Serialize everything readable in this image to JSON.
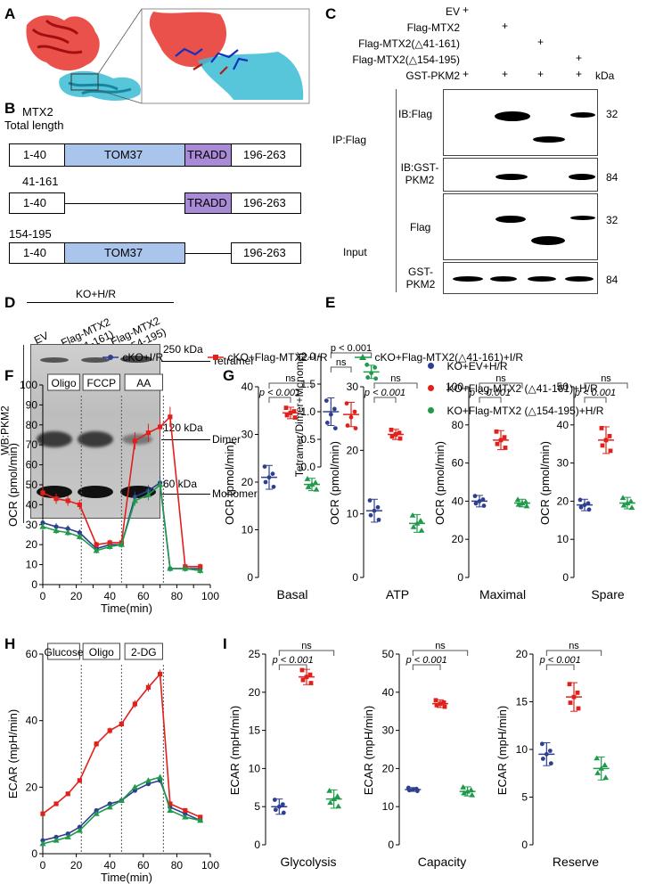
{
  "panels": {
    "A": "A",
    "B": "B",
    "C": "C",
    "D": "D",
    "E": "E",
    "F": "F",
    "G": "G",
    "H": "H",
    "I": "I"
  },
  "panel_b": {
    "title_line1": "MTX2",
    "title_line2": "Total length",
    "row2_label": "41-161",
    "row3_label": "154-195",
    "seg_1_40": "1-40",
    "seg_tom37": "TOM37",
    "seg_tradd": "TRADD",
    "seg_196_263": "196-263"
  },
  "panel_c": {
    "conditions": [
      "EV",
      "Flag-MTX2",
      "Flag-MTX2(△41-161)",
      "Flag-MTX2(△154-195)",
      "GST-PKM2"
    ],
    "plus": "+",
    "kda": "kDa",
    "ip_label": "IP:Flag",
    "input_label": "Input",
    "blots": [
      {
        "label": "IB:Flag",
        "mw": "32"
      },
      {
        "label": "IB:GST-PKM2",
        "mw": "84"
      },
      {
        "label": "Flag",
        "mw": "32"
      },
      {
        "label": "GST-PKM2",
        "mw": "84"
      }
    ]
  },
  "panel_d": {
    "header": "KO+H/R",
    "lanes": [
      "EV",
      "Flag-MTX2 (△41-161)",
      "Flag-MTX2 (△154-195)"
    ],
    "side_label": "WB:PKM2",
    "markers": [
      {
        "mw": "250 kDa",
        "name": "Tetramer"
      },
      {
        "mw": "120 kDa",
        "name": "Dimer"
      },
      {
        "mw": "60 kDa",
        "name": "Monomer"
      }
    ]
  },
  "panel_e": {
    "ylabel": "Tetramer/Dimer+Monomer",
    "p_label": "p < 0.001",
    "ns_label": "ns",
    "legend": [
      {
        "name": "KO+EV+H/R",
        "color": "#2e3f8f"
      },
      {
        "name": "KO+Flag-MTX2 (△41-161)+H/R",
        "color": "#e0201b"
      },
      {
        "name": "KO+Flag-MTX2 (△154-195)+H/R",
        "color": "#1e9a4a"
      }
    ]
  },
  "legend_fg": [
    {
      "name": "cKO+I/R",
      "color": "#2e3f8f"
    },
    {
      "name": "cKO+Flag-MTX2+I/R",
      "color": "#e0201b"
    },
    {
      "name": "cKO+Flag-MTX2(△41-161)+I/R",
      "color": "#1e9a4a"
    }
  ],
  "panel_f": {
    "ylabel": "OCR (pmol/min)",
    "xlabel": "Time(min)",
    "injections": [
      "Oligo",
      "FCCP",
      "AA"
    ]
  },
  "panel_g": {
    "ylabel": "OCR (pmol/min)",
    "p_label": "p < 0.001",
    "ns_label": "ns",
    "subplots": [
      "Basal",
      "ATP",
      "Maximal",
      "Spare"
    ]
  },
  "panel_h": {
    "ylabel": "ECAR (mpH/min)",
    "xlabel": "Time(min)",
    "injections": [
      "Glucose",
      "Oligo",
      "2-DG"
    ]
  },
  "panel_i": {
    "ylabel": "ECAR (mpH/min)",
    "p_label": "p < 0.001",
    "ns_label": "ns",
    "subplots": [
      "Glycolysis",
      "Capacity",
      "Reserve"
    ]
  },
  "chart_data": [
    {
      "id": "E",
      "type": "scatter",
      "ylabel": "Tetramer/Dimer+Monomer",
      "ylim": [
        0,
        2.0
      ],
      "yticks": [
        0.0,
        0.5,
        1.0,
        1.5,
        2.0
      ],
      "series": [
        {
          "name": "KO+EV+H/R",
          "mean": 1.0,
          "sd": 0.25,
          "points": [
            1.2,
            1.05,
            0.95,
            0.8,
            0.7
          ]
        },
        {
          "name": "KO+Flag-MTX2 (△41-161)+H/R",
          "mean": 0.95,
          "sd": 0.22,
          "points": [
            1.15,
            1.0,
            0.9,
            0.75,
            0.7
          ]
        },
        {
          "name": "KO+Flag-MTX2 (△154-195)+H/R",
          "mean": 1.72,
          "sd": 0.12,
          "points": [
            1.85,
            1.8,
            1.7,
            1.62,
            1.6
          ]
        }
      ]
    },
    {
      "id": "F",
      "type": "line",
      "ylabel": "OCR (pmol/min)",
      "xlabel": "Time(min)",
      "xlim": [
        0,
        100
      ],
      "ylim": [
        0,
        100
      ],
      "xticks": [
        0,
        10,
        20,
        30,
        40,
        50,
        60,
        70,
        80,
        90,
        100
      ],
      "yticks": [
        0,
        10,
        20,
        30,
        40,
        50,
        60,
        70,
        80,
        90,
        100
      ],
      "x": [
        0,
        8,
        15,
        22,
        32,
        40,
        47,
        55,
        63,
        70,
        76,
        85,
        94
      ],
      "series": [
        {
          "name": "cKO+I/R",
          "values": [
            31,
            29,
            28,
            26,
            18,
            20,
            20,
            44,
            47,
            51,
            8,
            8,
            8
          ]
        },
        {
          "name": "cKO+Flag-MTX2+I/R",
          "values": [
            46,
            43,
            42,
            40,
            20,
            21,
            21,
            72,
            76,
            79,
            84,
            9,
            9
          ]
        },
        {
          "name": "cKO+Flag-MTX2(△41-161)+I/R",
          "values": [
            29,
            27,
            26,
            24,
            17,
            19,
            20,
            42,
            45,
            50,
            8,
            8,
            7
          ]
        }
      ]
    },
    {
      "id": "G-Basal",
      "type": "scatter",
      "ylim": [
        0,
        40
      ],
      "yticks": [
        0,
        10,
        20,
        30,
        40
      ],
      "series": [
        {
          "name": "cKO+I/R",
          "mean": 21,
          "sd": 2.5
        },
        {
          "name": "cKO+Flag-MTX2+I/R",
          "mean": 34.5,
          "sd": 1.2
        },
        {
          "name": "cKO+Flag-MTX2(△41-161)+I/R",
          "mean": 19.5,
          "sd": 1.3
        }
      ]
    },
    {
      "id": "G-ATP",
      "type": "scatter",
      "ylim": [
        0,
        30
      ],
      "yticks": [
        0,
        10,
        20,
        30
      ],
      "series": [
        {
          "name": "cKO+I/R",
          "mean": 10.5,
          "sd": 1.8
        },
        {
          "name": "cKO+Flag-MTX2+I/R",
          "mean": 22.5,
          "sd": 0.8
        },
        {
          "name": "cKO+Flag-MTX2(△41-161)+I/R",
          "mean": 8.5,
          "sd": 1.4
        }
      ]
    },
    {
      "id": "G-Maximal",
      "type": "scatter",
      "ylim": [
        0,
        100
      ],
      "yticks": [
        0,
        20,
        40,
        60,
        80,
        100
      ],
      "series": [
        {
          "name": "cKO+I/R",
          "mean": 40,
          "sd": 3
        },
        {
          "name": "cKO+Flag-MTX2+I/R",
          "mean": 72,
          "sd": 5
        },
        {
          "name": "cKO+Flag-MTX2(△41-161)+I/R",
          "mean": 39,
          "sd": 2
        }
      ]
    },
    {
      "id": "G-Spare",
      "type": "scatter",
      "ylim": [
        0,
        50
      ],
      "yticks": [
        0,
        10,
        20,
        30,
        40,
        50
      ],
      "series": [
        {
          "name": "cKO+I/R",
          "mean": 19,
          "sd": 1.5
        },
        {
          "name": "cKO+Flag-MTX2+I/R",
          "mean": 36,
          "sd": 3.5
        },
        {
          "name": "cKO+Flag-MTX2(△41-161)+I/R",
          "mean": 19.5,
          "sd": 1.5
        }
      ]
    },
    {
      "id": "H",
      "type": "line",
      "ylabel": "ECAR (mpH/min)",
      "xlabel": "Time(min)",
      "xlim": [
        0,
        100
      ],
      "ylim": [
        0,
        60
      ],
      "xticks": [
        0,
        20,
        40,
        60,
        80,
        100
      ],
      "yticks": [
        0,
        20,
        40,
        60
      ],
      "x": [
        0,
        8,
        15,
        22,
        32,
        40,
        47,
        55,
        63,
        70,
        76,
        85,
        94
      ],
      "series": [
        {
          "name": "cKO+I/R",
          "values": [
            4,
            5,
            6,
            8,
            13,
            15,
            16,
            19,
            21,
            22,
            14,
            12,
            10
          ]
        },
        {
          "name": "cKO+Flag-MTX2+I/R",
          "values": [
            12,
            15,
            18,
            22,
            33,
            37,
            39,
            45,
            50,
            54,
            15,
            13,
            11
          ]
        },
        {
          "name": "cKO+Flag-MTX2(△41-161)+I/R",
          "values": [
            3,
            4,
            5,
            7,
            12,
            14,
            16,
            20,
            22,
            23,
            13,
            11,
            10
          ]
        }
      ]
    },
    {
      "id": "I-Glycolysis",
      "type": "scatter",
      "ylim": [
        0,
        25
      ],
      "yticks": [
        0,
        5,
        10,
        15,
        20,
        25
      ],
      "series": [
        {
          "name": "cKO+I/R",
          "mean": 5,
          "sd": 1
        },
        {
          "name": "cKO+Flag-MTX2+I/R",
          "mean": 22,
          "sd": 1
        },
        {
          "name": "cKO+Flag-MTX2(△41-161)+I/R",
          "mean": 6,
          "sd": 1.2
        }
      ]
    },
    {
      "id": "I-Capacity",
      "type": "scatter",
      "ylim": [
        0,
        50
      ],
      "yticks": [
        0,
        10,
        20,
        30,
        40,
        50
      ],
      "series": [
        {
          "name": "cKO+I/R",
          "mean": 14.5,
          "sd": 0.5
        },
        {
          "name": "cKO+Flag-MTX2+I/R",
          "mean": 37,
          "sd": 1
        },
        {
          "name": "cKO+Flag-MTX2(△41-161)+I/R",
          "mean": 14,
          "sd": 1.2
        }
      ]
    },
    {
      "id": "I-Reserve",
      "type": "scatter",
      "ylim": [
        0,
        20
      ],
      "yticks": [
        0,
        5,
        10,
        15,
        20
      ],
      "series": [
        {
          "name": "cKO+I/R",
          "mean": 9.5,
          "sd": 1.2
        },
        {
          "name": "cKO+Flag-MTX2+I/R",
          "mean": 15.5,
          "sd": 1.5
        },
        {
          "name": "cKO+Flag-MTX2(△41-161)+I/R",
          "mean": 8,
          "sd": 1.2
        }
      ]
    }
  ]
}
